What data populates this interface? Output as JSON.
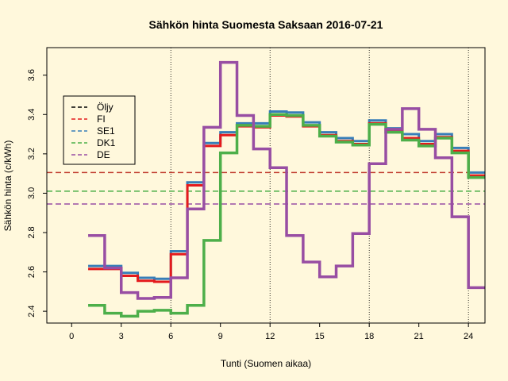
{
  "chart_data": {
    "type": "line",
    "title": "Sähkön hinta Suomesta Saksaan 2016-07-21",
    "xlabel": "Tunti (Suomen aikaa)",
    "ylabel": "Sähkön hinta (c/kWh)",
    "xlim": [
      -1.5,
      25
    ],
    "ylim": [
      2.34,
      3.74
    ],
    "xticks": [
      0,
      3,
      6,
      9,
      12,
      15,
      18,
      21,
      24
    ],
    "yticks": [
      2.4,
      2.6,
      2.8,
      3.0,
      3.2,
      3.4,
      3.6
    ],
    "vlines": [
      6,
      12,
      18,
      24
    ],
    "legend_position": "top-left",
    "hlines": [
      {
        "name": "Öljy",
        "value": 3.105,
        "color": "#c0392b"
      },
      {
        "name": "DK1",
        "value": 3.01,
        "color": "#4daf4a"
      },
      {
        "name": "DE",
        "value": 2.945,
        "color": "#984ea3"
      }
    ],
    "x": [
      1,
      2,
      3,
      4,
      5,
      6,
      7,
      8,
      9,
      10,
      11,
      12,
      13,
      14,
      15,
      16,
      17,
      18,
      19,
      20,
      21,
      22,
      23,
      24,
      25
    ],
    "series": [
      {
        "name": "SE1",
        "color": "#377eb8",
        "width": 3,
        "values": [
          2.63,
          2.63,
          2.595,
          2.57,
          2.565,
          2.705,
          3.055,
          3.255,
          3.31,
          3.355,
          3.355,
          3.415,
          3.41,
          3.36,
          3.31,
          3.28,
          3.265,
          3.37,
          3.33,
          3.3,
          3.265,
          3.3,
          3.23,
          3.105,
          3.105
        ]
      },
      {
        "name": "FI",
        "color": "#e41a1c",
        "width": 3,
        "values": [
          2.615,
          2.615,
          2.58,
          2.555,
          2.55,
          2.69,
          3.04,
          3.24,
          3.295,
          3.34,
          3.335,
          3.395,
          3.39,
          3.34,
          3.295,
          3.265,
          3.25,
          3.355,
          3.315,
          3.28,
          3.25,
          3.285,
          3.215,
          3.09,
          3.09
        ]
      },
      {
        "name": "DK1",
        "color": "#4daf4a",
        "width": 3.5,
        "values": [
          2.43,
          2.39,
          2.375,
          2.4,
          2.405,
          2.39,
          2.43,
          2.76,
          3.205,
          3.345,
          3.34,
          3.4,
          3.395,
          3.345,
          3.29,
          3.26,
          3.245,
          3.35,
          3.31,
          3.27,
          3.24,
          3.28,
          3.205,
          3.08,
          3.08
        ]
      },
      {
        "name": "DE",
        "color": "#984ea3",
        "width": 3.5,
        "values": [
          2.785,
          2.62,
          2.495,
          2.465,
          2.47,
          2.57,
          2.92,
          3.335,
          3.665,
          3.395,
          3.225,
          3.13,
          2.785,
          2.65,
          2.575,
          2.63,
          2.795,
          3.15,
          3.325,
          3.43,
          3.325,
          3.18,
          2.88,
          2.52,
          2.52
        ]
      }
    ],
    "legend": [
      {
        "label": "Öljy",
        "color": "#000000"
      },
      {
        "label": "FI",
        "color": "#e41a1c"
      },
      {
        "label": "SE1",
        "color": "#377eb8"
      },
      {
        "label": "DK1",
        "color": "#4daf4a"
      },
      {
        "label": "DE",
        "color": "#984ea3"
      }
    ]
  }
}
